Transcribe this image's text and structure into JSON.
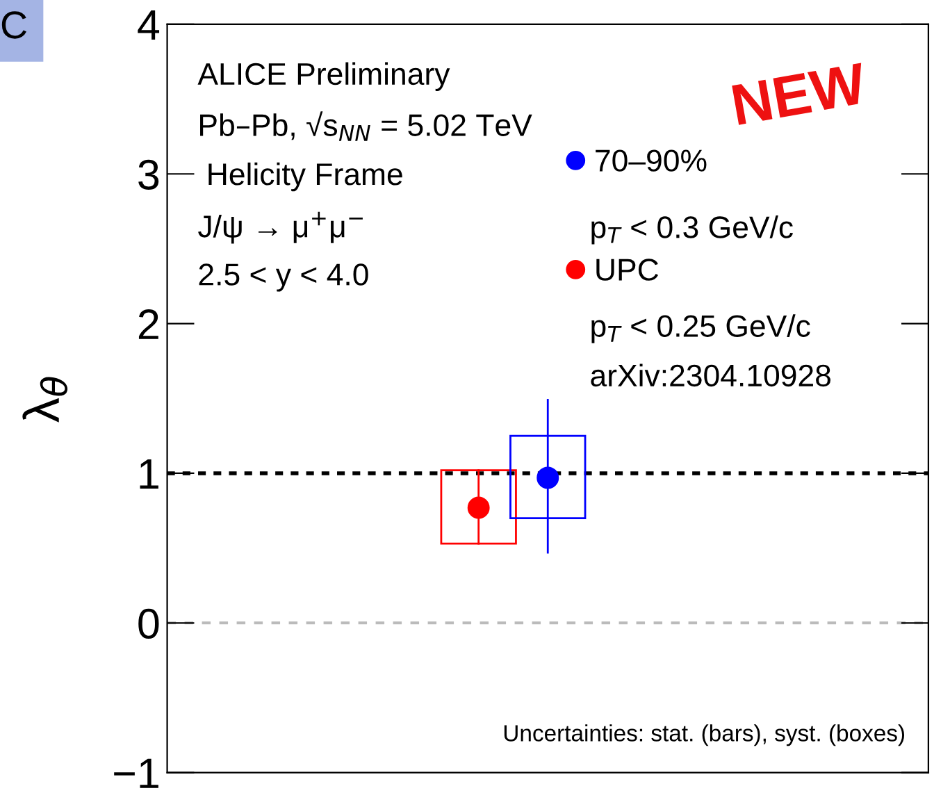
{
  "chart_data": {
    "type": "scatter",
    "categories": [
      null,
      null,
      null,
      null,
      null,
      null,
      null,
      null,
      null,
      null,
      null
    ],
    "ylabel": "λ$_{θ}$",
    "ylim": [
      -1,
      4
    ],
    "yticks": [
      {
        "value": -1,
        "label": "−1"
      },
      0,
      1,
      2,
      3,
      4
    ],
    "tick_labels": "y",
    "grid": false,
    "legend": "top right",
    "marker": "circle",
    "series": [
      {
        "type": "bar",
        "colors": [
          null,
          null,
          null,
          null,
          "#ff0000",
          "#0000ff",
          null,
          null,
          null,
          null,
          null
        ],
        "base": [
          null,
          null,
          null,
          null,
          0.53,
          0.7,
          null,
          null,
          null,
          null,
          null
        ],
        "values": [
          null,
          null,
          null,
          null,
          0.49,
          0.55,
          null,
          null,
          null,
          null,
          null
        ]
      },
      {
        "name": "70–90%",
        "color": "#0000ff",
        "values": [
          null,
          null,
          null,
          null,
          null,
          0.97,
          null,
          null,
          null,
          null,
          null
        ],
        "errors": [
          null,
          null,
          null,
          null,
          null,
          [
            0.47,
            1.49
          ],
          null,
          null,
          null,
          null,
          null
        ]
      },
      {
        "name": "UPC",
        "color": "#ff0000",
        "values": [
          null,
          null,
          null,
          null,
          0.77,
          null,
          null,
          null,
          null,
          null,
          null
        ],
        "errors": [
          null,
          null,
          null,
          null,
          [
            0.53,
            1.02
          ],
          null,
          null,
          null,
          null,
          null,
          null
        ]
      }
    ],
    "ref_lines": [
      {
        "axis": "y",
        "value": 1,
        "color": "#000000",
        "line_style": "dotted"
      },
      {
        "axis": "y",
        "value": 0,
        "color": "#bbbbbb",
        "line_style": "dashed"
      }
    ],
    "annotations": [
      "ALICE Preliminary",
      "Pb–Pb, √s$_{NN}$ = 5.02 TeV",
      " Helicity Frame",
      "J/ψ → μ$^{+}$μ$^{−}$",
      "2.5 < y < 4.0",
      "p$_{T}$ < 0.3 GeV/c",
      "p$_{T}$ < 0.25 GeV/c",
      "arXiv:2304.10928",
      "Uncertainties: stat. (bars), syst. (boxes)",
      "NEW",
      "C"
    ]
  }
}
